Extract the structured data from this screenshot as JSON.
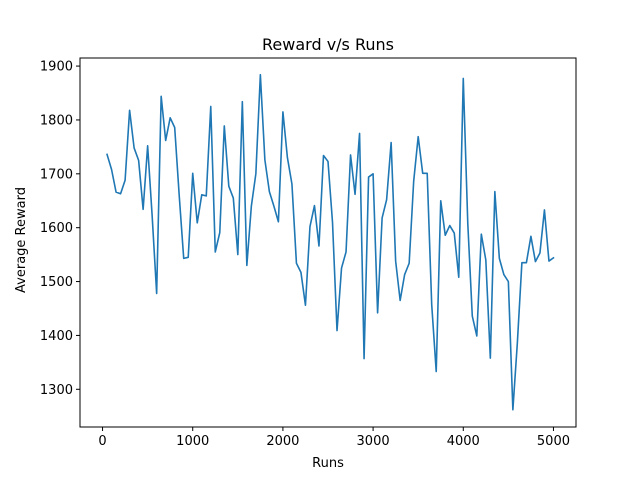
{
  "chart_data": {
    "type": "line",
    "title": "Reward v/s Runs",
    "xlabel": "Runs",
    "ylabel": "Average Reward",
    "xlim": [
      -250,
      5250
    ],
    "ylim": [
      1230,
      1915
    ],
    "xticks": [
      0,
      1000,
      2000,
      3000,
      4000,
      5000
    ],
    "yticks": [
      1300,
      1400,
      1500,
      1600,
      1700,
      1800,
      1900
    ],
    "grid": false,
    "legend": "none",
    "line_color": "#1f77b4",
    "series": [
      {
        "x": [
          50,
          100,
          150,
          200,
          250,
          300,
          350,
          400,
          450,
          500,
          550,
          600,
          650,
          700,
          750,
          800,
          850,
          900,
          950,
          1000,
          1050,
          1100,
          1150,
          1200,
          1250,
          1300,
          1350,
          1400,
          1450,
          1500,
          1550,
          1600,
          1650,
          1700,
          1750,
          1800,
          1850,
          1900,
          1950,
          2000,
          2050,
          2100,
          2150,
          2200,
          2250,
          2300,
          2350,
          2400,
          2450,
          2500,
          2550,
          2600,
          2650,
          2700,
          2750,
          2800,
          2850,
          2900,
          2950,
          3000,
          3050,
          3100,
          3150,
          3200,
          3250,
          3300,
          3350,
          3400,
          3450,
          3500,
          3550,
          3600,
          3650,
          3700,
          3750,
          3800,
          3850,
          3900,
          3950,
          4000,
          4050,
          4100,
          4150,
          4200,
          4250,
          4300,
          4350,
          4400,
          4450,
          4500,
          4550,
          4600,
          4650,
          4700,
          4750,
          4800,
          4850,
          4900,
          4950,
          5000
        ],
        "values": [
          1736,
          1708,
          1666,
          1663,
          1688,
          1818,
          1748,
          1725,
          1634,
          1752,
          1622,
          1478,
          1844,
          1762,
          1804,
          1786,
          1660,
          1543,
          1545,
          1701,
          1609,
          1661,
          1659,
          1825,
          1555,
          1591,
          1789,
          1677,
          1655,
          1550,
          1834,
          1530,
          1640,
          1700,
          1884,
          1726,
          1667,
          1640,
          1611,
          1815,
          1730,
          1681,
          1534,
          1517,
          1456,
          1602,
          1641,
          1566,
          1734,
          1723,
          1610,
          1409,
          1525,
          1555,
          1735,
          1662,
          1775,
          1357,
          1694,
          1700,
          1442,
          1618,
          1652,
          1758,
          1538,
          1465,
          1513,
          1534,
          1686,
          1769,
          1701,
          1701,
          1457,
          1333,
          1650,
          1586,
          1604,
          1590,
          1508,
          1877,
          1608,
          1436,
          1399,
          1588,
          1540,
          1358,
          1667,
          1543,
          1513,
          1500,
          1262,
          1387,
          1535,
          1535,
          1584,
          1537,
          1553,
          1633,
          1538,
          1544
        ]
      }
    ]
  }
}
